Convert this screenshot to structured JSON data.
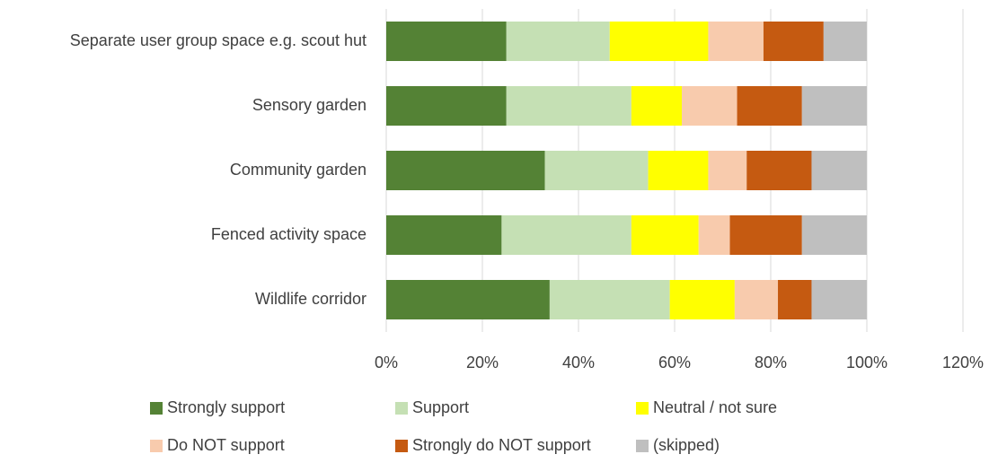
{
  "chart_data": {
    "type": "stacked-bar-horizontal",
    "categories": [
      "Separate user group space e.g. scout hut",
      "Sensory garden",
      "Community garden",
      "Fenced activity space",
      "Wildlife corridor"
    ],
    "series": [
      {
        "name": "Strongly support",
        "color": "#548235",
        "values": [
          25,
          25,
          33,
          24,
          34
        ]
      },
      {
        "name": "Support",
        "color": "#c5e0b4",
        "values": [
          21.5,
          26,
          21.5,
          27,
          25
        ]
      },
      {
        "name": "Neutral / not sure",
        "color": "#ffff00",
        "values": [
          20.5,
          10.5,
          12.5,
          14,
          13.5
        ]
      },
      {
        "name": "Do NOT support",
        "color": "#f8cbad",
        "values": [
          11.5,
          11.5,
          8,
          6.5,
          9
        ]
      },
      {
        "name": "Strongly do NOT support",
        "color": "#c55a11",
        "values": [
          12.5,
          13.5,
          13.5,
          15,
          7
        ]
      },
      {
        "name": "(skipped)",
        "color": "#bfbfbf",
        "values": [
          9,
          13.5,
          11.5,
          13.5,
          11.5
        ]
      }
    ],
    "xlim": [
      0,
      120
    ],
    "xticks": [
      {
        "value": 0,
        "label": "0%"
      },
      {
        "value": 20,
        "label": "20%"
      },
      {
        "value": 40,
        "label": "40%"
      },
      {
        "value": 60,
        "label": "60%"
      },
      {
        "value": 80,
        "label": "80%"
      },
      {
        "value": 100,
        "label": "100%"
      },
      {
        "value": 120,
        "label": "120%"
      }
    ],
    "grid": true,
    "legend": "bottom"
  }
}
